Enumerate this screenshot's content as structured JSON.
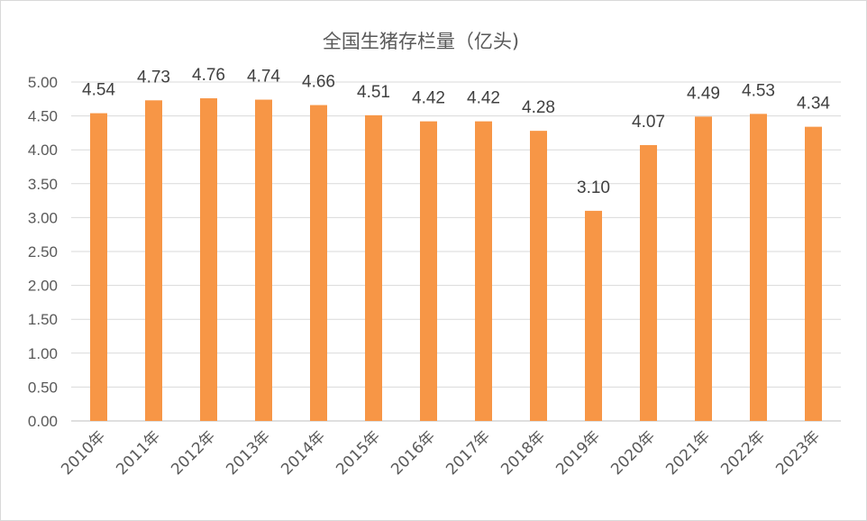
{
  "chart_data": {
    "type": "bar",
    "title": "全国生猪存栏量（亿头)",
    "xlabel": "",
    "ylabel": "",
    "categories": [
      "2010年",
      "2011年",
      "2012年",
      "2013年",
      "2014年",
      "2015年",
      "2016年",
      "2017年",
      "2018年",
      "2019年",
      "2020年",
      "2021年",
      "2022年",
      "2023年"
    ],
    "values": [
      4.54,
      4.73,
      4.76,
      4.74,
      4.66,
      4.51,
      4.42,
      4.42,
      4.28,
      3.1,
      4.07,
      4.49,
      4.53,
      4.34
    ],
    "value_labels": [
      "4.54",
      "4.73",
      "4.76",
      "4.74",
      "4.66",
      "4.51",
      "4.42",
      "4.42",
      "4.28",
      "3.10",
      "4.07",
      "4.49",
      "4.53",
      "4.34"
    ],
    "ylim": [
      0,
      5
    ],
    "yticks": [
      "0.00",
      "0.50",
      "1.00",
      "1.50",
      "2.00",
      "2.50",
      "3.00",
      "3.50",
      "4.00",
      "4.50",
      "5.00"
    ],
    "grid": true,
    "legend": "none",
    "colors": {
      "bar": "#F79646",
      "grid": "#D9D9D9",
      "text": "#595959"
    }
  }
}
